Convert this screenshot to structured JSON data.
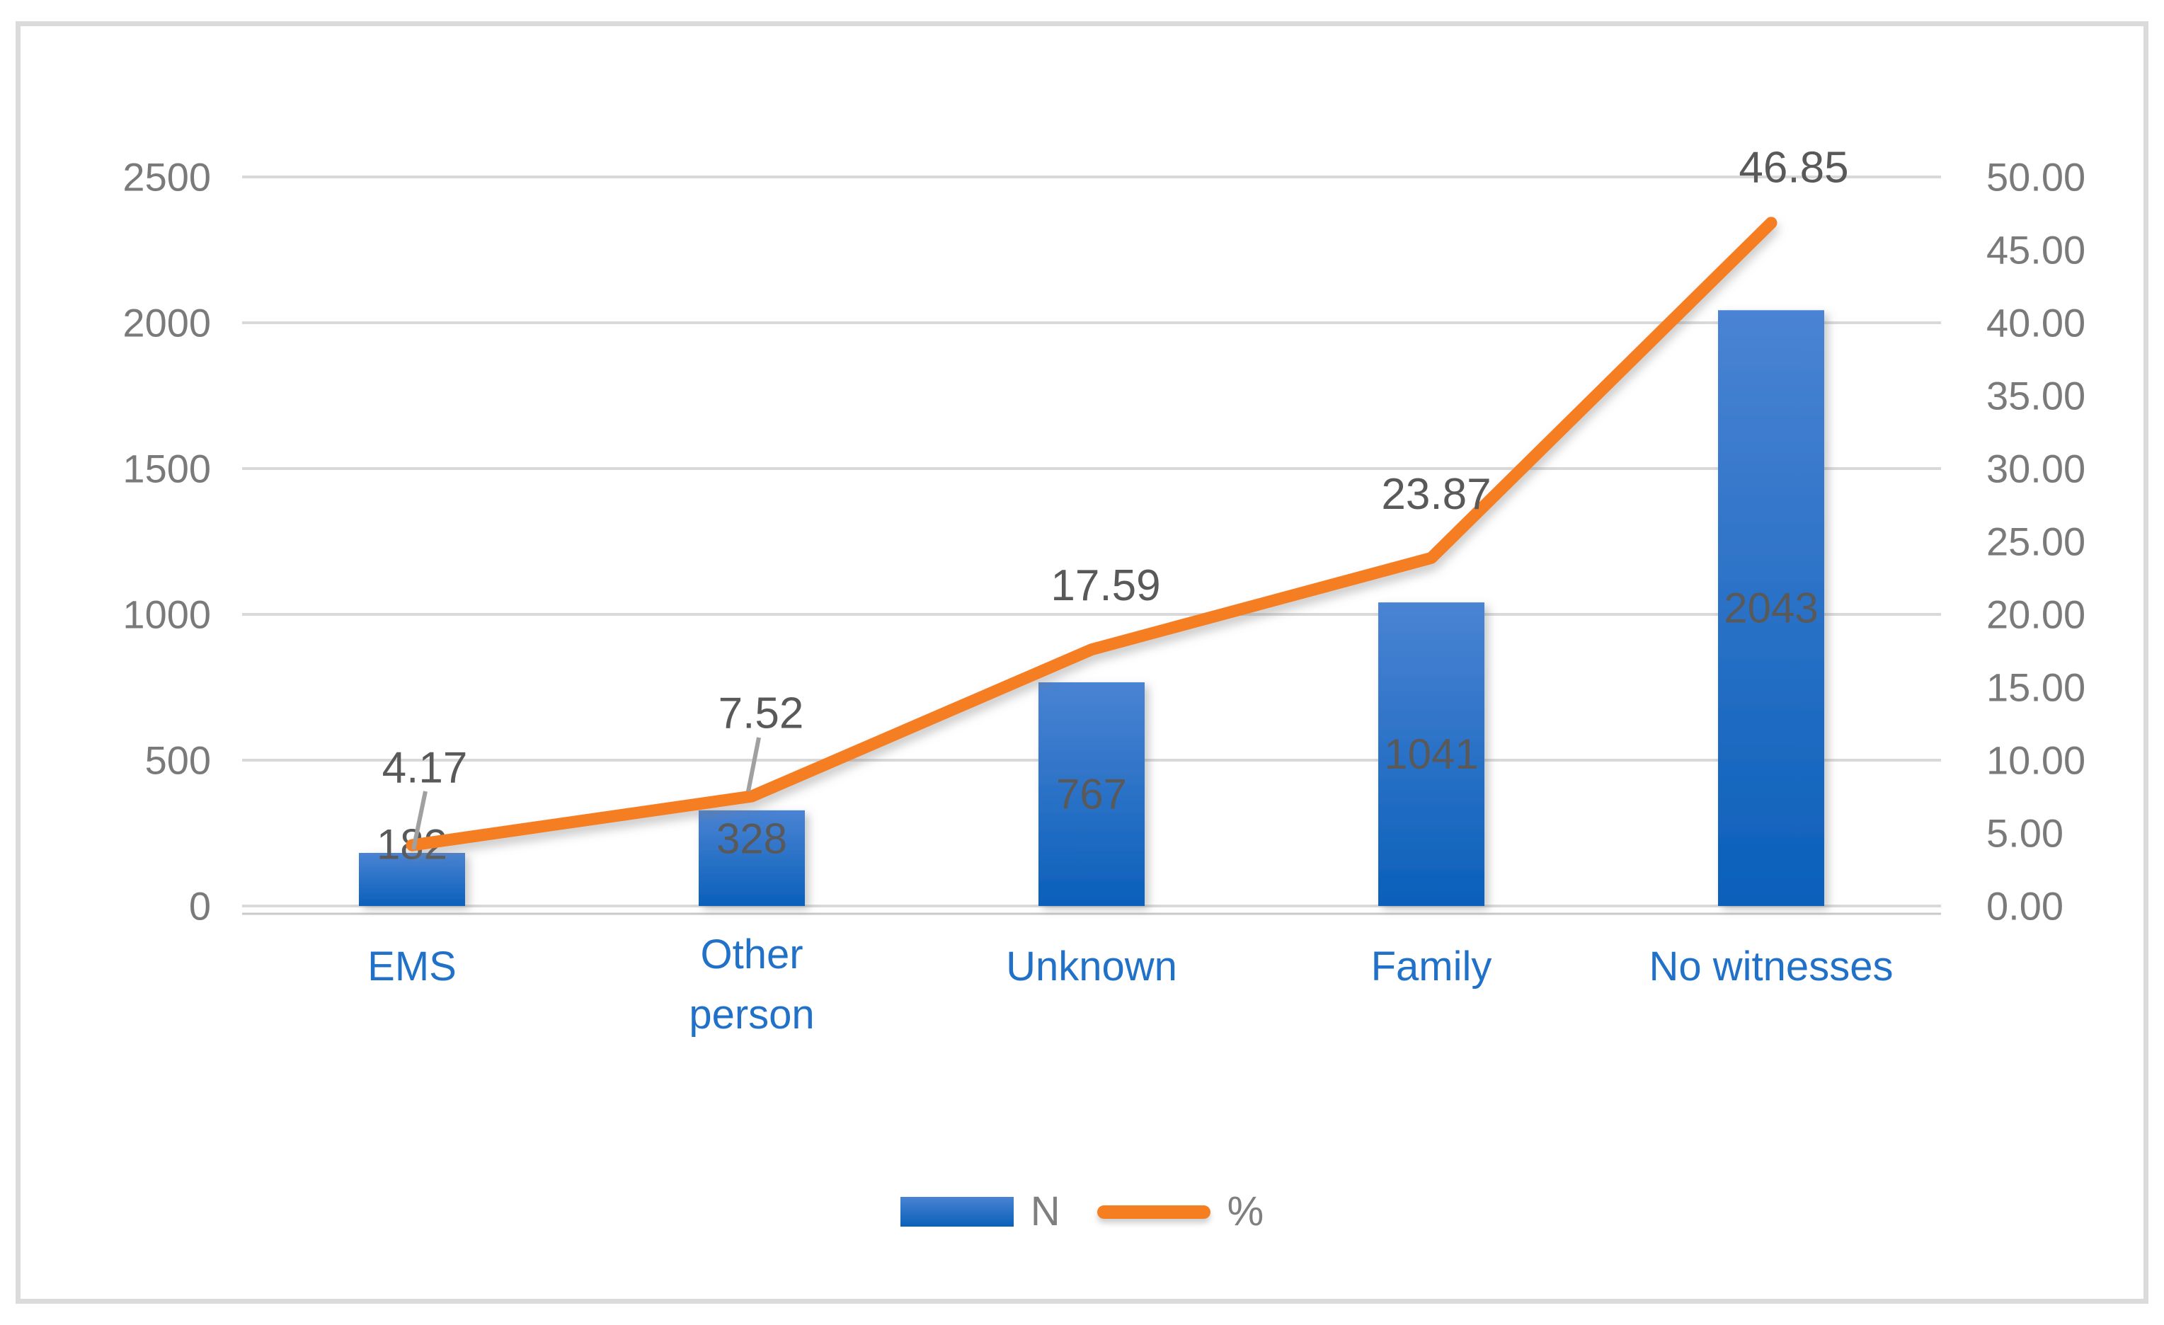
{
  "chart_data": {
    "type": "combo",
    "title": "",
    "categories": [
      "EMS",
      "Other\nperson",
      "Unknown",
      "Family",
      "No witnesses"
    ],
    "series": [
      {
        "name": "N",
        "type": "bar",
        "axis": "left",
        "values": [
          182,
          328,
          767,
          1041,
          2043
        ]
      },
      {
        "name": "%",
        "type": "line",
        "axis": "right",
        "values": [
          4.17,
          7.52,
          17.59,
          23.87,
          46.85
        ]
      }
    ],
    "data_labels": {
      "n": [
        "182",
        "328",
        "767",
        "1041",
        "2043"
      ],
      "pct": [
        "4.17",
        "7.52",
        "17.59",
        "23.87",
        "46.85"
      ]
    },
    "left_axis": {
      "min": 0,
      "max": 2500,
      "ticks": [
        "0",
        "500",
        "1000",
        "1500",
        "2000",
        "2500"
      ]
    },
    "right_axis": {
      "min": 0,
      "max": 50,
      "ticks": [
        "0.00",
        "5.00",
        "10.00",
        "15.00",
        "20.00",
        "25.00",
        "30.00",
        "35.00",
        "40.00",
        "45.00",
        "50.00"
      ]
    },
    "grid": true,
    "legend_position": "bottom",
    "colors": {
      "bar_top": "#4a83d3",
      "bar_bottom": "#0a60ba",
      "line": "#f57e21",
      "grid": "#d9d9d9",
      "axis_line": "#c9c9c9",
      "axis_text": "#7a7a7a",
      "data_label": "#595959",
      "category_label": "#2071c7",
      "legend_text": "#7f7f7f",
      "leader_line": "#a0a0a0",
      "frame_border": "#dbdbdb",
      "background": "#ffffff"
    }
  }
}
